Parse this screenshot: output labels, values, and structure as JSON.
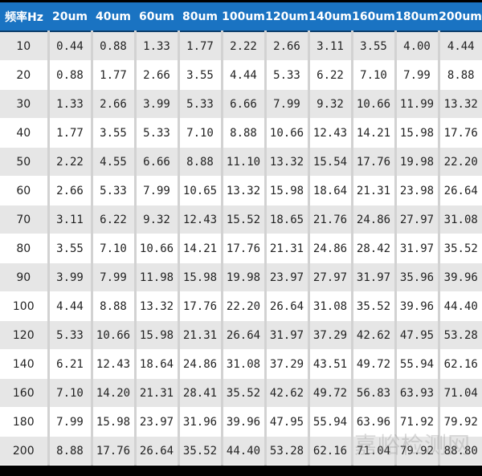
{
  "table": {
    "headers": [
      "频率Hz",
      "20um",
      "40um",
      "60um",
      "80um",
      "100um",
      "120um",
      "140um",
      "160um",
      "180um",
      "200um"
    ],
    "rows": [
      [
        "10",
        "0.44",
        "0.88",
        "1.33",
        "1.77",
        "2.22",
        "2.66",
        "3.11",
        "3.55",
        "4.00",
        "4.44"
      ],
      [
        "20",
        "0.88",
        "1.77",
        "2.66",
        "3.55",
        "4.44",
        "5.33",
        "6.22",
        "7.10",
        "7.99",
        "8.88"
      ],
      [
        "30",
        "1.33",
        "2.66",
        "3.99",
        "5.33",
        "6.66",
        "7.99",
        "9.32",
        "10.66",
        "11.99",
        "13.32"
      ],
      [
        "40",
        "1.77",
        "3.55",
        "5.33",
        "7.10",
        "8.88",
        "10.66",
        "12.43",
        "14.21",
        "15.98",
        "17.76"
      ],
      [
        "50",
        "2.22",
        "4.55",
        "6.66",
        "8.88",
        "11.10",
        "13.32",
        "15.54",
        "17.76",
        "19.98",
        "22.20"
      ],
      [
        "60",
        "2.66",
        "5.33",
        "7.99",
        "10.65",
        "13.32",
        "15.98",
        "18.64",
        "21.31",
        "23.98",
        "26.64"
      ],
      [
        "70",
        "3.11",
        "6.22",
        "9.32",
        "12.43",
        "15.52",
        "18.65",
        "21.76",
        "24.86",
        "27.97",
        "31.08"
      ],
      [
        "80",
        "3.55",
        "7.10",
        "10.66",
        "14.21",
        "17.76",
        "21.31",
        "24.86",
        "28.42",
        "31.97",
        "35.52"
      ],
      [
        "90",
        "3.99",
        "7.99",
        "11.98",
        "15.98",
        "19.98",
        "23.97",
        "27.97",
        "31.97",
        "35.96",
        "39.96"
      ],
      [
        "100",
        "4.44",
        "8.88",
        "13.32",
        "17.76",
        "22.20",
        "26.64",
        "31.08",
        "35.52",
        "39.96",
        "44.40"
      ],
      [
        "120",
        "5.33",
        "10.66",
        "15.98",
        "21.31",
        "26.64",
        "31.97",
        "37.29",
        "42.62",
        "47.95",
        "53.28"
      ],
      [
        "140",
        "6.21",
        "12.43",
        "18.64",
        "24.86",
        "31.08",
        "37.29",
        "43.51",
        "49.72",
        "55.94",
        "62.16"
      ],
      [
        "160",
        "7.10",
        "14.20",
        "21.31",
        "28.41",
        "35.52",
        "42.62",
        "49.72",
        "56.83",
        "63.93",
        "71.04"
      ],
      [
        "180",
        "7.99",
        "15.98",
        "23.97",
        "31.96",
        "39.96",
        "47.95",
        "55.94",
        "63.96",
        "71.92",
        "79.92"
      ],
      [
        "200",
        "8.88",
        "17.76",
        "26.64",
        "35.52",
        "44.40",
        "53.28",
        "62.16",
        "71.04",
        "79.92",
        "88.80"
      ]
    ]
  },
  "watermark": "嘉峪检测网",
  "colors": {
    "header_bg": "#1a73c2",
    "odd_row": "#e6e6e6",
    "even_row": "#ffffff"
  }
}
